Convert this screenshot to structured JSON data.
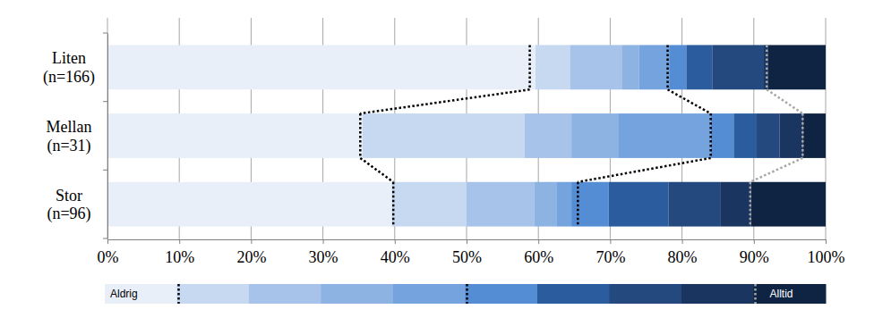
{
  "chart_data": {
    "type": "bar",
    "orientation": "horizontal",
    "stacked": true,
    "grid": true,
    "legend": "bottom",
    "categories": [
      "Liten (n=166)",
      "Mellan (n=31)",
      "Stor (n=96)"
    ],
    "xlim": [
      0,
      100
    ],
    "xticks": [
      {
        "value": 0,
        "label": "0%"
      },
      {
        "value": 10,
        "label": "10%"
      },
      {
        "value": 20,
        "label": "20%"
      },
      {
        "value": 30,
        "label": "30%"
      },
      {
        "value": 40,
        "label": "40%"
      },
      {
        "value": 50,
        "label": "50%"
      },
      {
        "value": 60,
        "label": "60%"
      },
      {
        "value": 70,
        "label": "70%"
      },
      {
        "value": 80,
        "label": "80%"
      },
      {
        "value": 90,
        "label": "90%"
      },
      {
        "value": 100,
        "label": "100%"
      }
    ],
    "series": [
      {
        "name": "Aldrig",
        "color": "#e9eff9",
        "values": [
          59.6,
          35.5,
          39.6
        ]
      },
      {
        "name": null,
        "color": "#c6d9f1",
        "values": [
          4.8,
          22.6,
          10.4
        ]
      },
      {
        "name": null,
        "color": "#a7c3ea",
        "values": [
          7.2,
          6.5,
          9.4
        ]
      },
      {
        "name": null,
        "color": "#8db3e2",
        "values": [
          2.4,
          6.5,
          3.1
        ]
      },
      {
        "name": null,
        "color": "#75a3de",
        "values": [
          4.2,
          12.9,
          2.1
        ]
      },
      {
        "name": null,
        "color": "#548dd4",
        "values": [
          2.4,
          3.2,
          5.2
        ]
      },
      {
        "name": null,
        "color": "#2b5d9e",
        "values": [
          3.6,
          3.2,
          8.3
        ]
      },
      {
        "name": null,
        "color": "#23497e",
        "values": [
          7.2,
          3.2,
          7.3
        ]
      },
      {
        "name": null,
        "color": "#1a3660",
        "values": [
          0.6,
          3.2,
          4.2
        ]
      },
      {
        "name": "Alltid",
        "color": "#0f2443",
        "values": [
          8.0,
          3.2,
          10.4
        ]
      }
    ],
    "markers": [
      {
        "color": "#000000",
        "line_style": "dotted",
        "values": [
          58.8,
          35.2,
          39.8
        ]
      },
      {
        "color": "#000000",
        "line_style": "dotted",
        "values": [
          78.0,
          84.0,
          65.5
        ]
      },
      {
        "color": "#a6a6a6",
        "line_style": "dotted",
        "values": [
          91.8,
          96.8,
          89.5
        ]
      }
    ]
  }
}
